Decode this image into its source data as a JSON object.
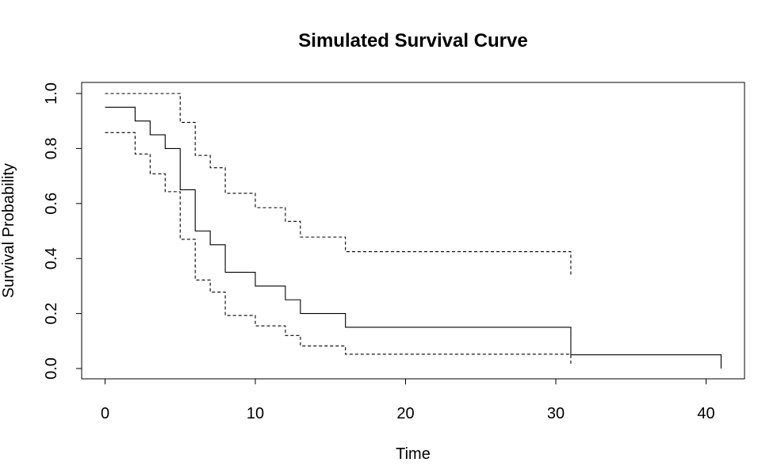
{
  "chart_data": {
    "type": "line",
    "title": "Simulated Survival Curve",
    "xlabel": "Time",
    "ylabel": "Survival Probability",
    "xlim": [
      0,
      41
    ],
    "ylim": [
      0,
      1
    ],
    "x_ticks": [
      0,
      10,
      20,
      30,
      40
    ],
    "x_tick_labels": [
      "0",
      "10",
      "20",
      "30",
      "40"
    ],
    "y_ticks": [
      0,
      0.2,
      0.4,
      0.6,
      0.8,
      1.0
    ],
    "y_tick_labels": [
      "0.0",
      "0.2",
      "0.4",
      "0.6",
      "0.8",
      "1.0"
    ],
    "grid": false,
    "legend": "none",
    "series": [
      {
        "style": "solid",
        "color": "#000000",
        "x": [
          0,
          2,
          3,
          4,
          5,
          6,
          7,
          8,
          10,
          12,
          13,
          16,
          31,
          41
        ],
        "y": [
          0.95,
          0.9,
          0.85,
          0.8,
          0.65,
          0.5,
          0.45,
          0.35,
          0.3,
          0.25,
          0.2,
          0.15,
          0.05,
          0.0
        ]
      },
      {
        "style": "dashed",
        "color": "#000000",
        "x": [
          0,
          5,
          6,
          7,
          8,
          10,
          12,
          13,
          16,
          31
        ],
        "y": [
          1.0,
          0.895,
          0.775,
          0.73,
          0.637,
          0.585,
          0.535,
          0.478,
          0.425,
          0.34
        ]
      },
      {
        "style": "dashed",
        "color": "#000000",
        "x": [
          0,
          2,
          3,
          4,
          5,
          6,
          7,
          8,
          10,
          12,
          13,
          16,
          31
        ],
        "y": [
          0.858,
          0.78,
          0.708,
          0.643,
          0.47,
          0.322,
          0.278,
          0.193,
          0.155,
          0.12,
          0.082,
          0.052,
          0.01
        ]
      }
    ]
  }
}
